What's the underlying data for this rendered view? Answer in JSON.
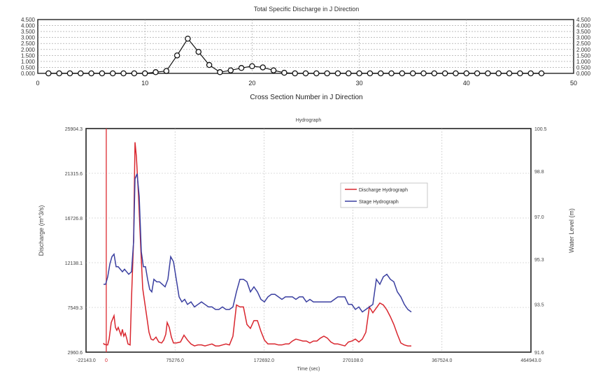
{
  "chart_data": [
    {
      "type": "line",
      "title": "Total Specific Discharge in J Direction",
      "xlabel": "Cross Section Number in J Direction",
      "ylabel": "",
      "xlim": [
        0,
        50
      ],
      "ylim": [
        0,
        4.5
      ],
      "x_ticks": [
        "0",
        "10",
        "20",
        "30",
        "40",
        "50"
      ],
      "y_ticks": [
        "0.000",
        "0.500",
        "1.000",
        "1.500",
        "2.000",
        "2.500",
        "3.000",
        "3.500",
        "4.000",
        "4.500"
      ],
      "y_ticks_right": [
        "0.000",
        "0.500",
        "1.000",
        "1.500",
        "2.000",
        "2.500",
        "3.000",
        "3.500",
        "4.000",
        "4.500"
      ],
      "grid": true,
      "series": [
        {
          "color": "#111111",
          "marker": "open-circle",
          "x": [
            1,
            2,
            3,
            4,
            5,
            6,
            7,
            8,
            9,
            10,
            11,
            12,
            13,
            14,
            15,
            16,
            17,
            18,
            19,
            20,
            21,
            22,
            23,
            24,
            25,
            26,
            27,
            28,
            29,
            30,
            31,
            32,
            33,
            34,
            35,
            36,
            37,
            38,
            39,
            40,
            41,
            42,
            43,
            44,
            45,
            46,
            47
          ],
          "values": [
            0,
            0,
            0,
            0,
            0,
            0,
            0,
            0,
            0,
            0,
            0.1,
            0.2,
            1.5,
            2.9,
            1.8,
            0.7,
            0.1,
            0.25,
            0.45,
            0.6,
            0.5,
            0.25,
            0.05,
            0,
            0,
            0,
            0,
            0,
            0,
            0,
            0,
            0,
            0,
            0,
            0,
            0,
            0,
            0,
            0,
            0,
            0,
            0,
            0,
            0,
            0,
            0,
            0
          ]
        }
      ]
    },
    {
      "type": "line",
      "title": "Hydrograph",
      "xlabel": "Time (sec)",
      "ylabel": "Discharge (m^3/s)",
      "ylabel_right": "Water Level (m)",
      "xlim": [
        -22143.0,
        464943.0
      ],
      "ylim": [
        2960.6,
        25904.3
      ],
      "ylim_right": [
        91.6,
        100.5
      ],
      "x_ticks": [
        "-22143.0",
        "0",
        "75276.0",
        "172692.0",
        "270108.0",
        "367524.0",
        "464943.0"
      ],
      "y_ticks": [
        "2960.6",
        "7549.3",
        "12138.1",
        "16726.8",
        "21315.6",
        "25904.3"
      ],
      "y_ticks_right": [
        "91.6",
        "93.5",
        "95.3",
        "97.0",
        "98.8",
        "100.5"
      ],
      "grid": true,
      "legend_position": "upper-center-right",
      "series": [
        {
          "name": "Discharge Hydrograph",
          "color": "#d9262e",
          "axis": "left",
          "x": [
            0,
            1,
            3,
            4,
            6,
            8,
            11,
            15,
            17,
            19,
            21,
            23,
            25,
            27,
            29,
            31,
            33,
            35,
            38,
            40,
            43,
            45,
            47,
            50,
            53,
            56,
            59,
            62,
            65,
            68,
            71,
            75,
            79,
            83,
            86,
            89,
            91,
            94,
            97,
            100,
            104,
            110,
            115,
            120,
            125,
            130,
            135,
            140,
            145,
            150,
            155,
            160,
            165,
            170,
            175,
            180,
            185,
            190,
            195,
            200,
            205,
            210,
            215,
            220,
            225,
            230,
            235,
            240,
            245,
            250,
            255,
            260,
            265,
            270,
            275,
            280,
            285,
            290,
            295,
            300,
            305,
            310,
            315,
            320,
            325,
            330,
            335,
            340,
            345,
            350,
            355,
            360,
            365,
            370,
            375,
            380,
            385,
            390,
            395,
            400,
            405,
            410,
            415,
            420,
            425,
            430,
            435,
            440
          ],
          "values": [
            3900,
            3750,
            3750,
            3700,
            3700,
            4300,
            6000,
            6700,
            5500,
            5200,
            5500,
            5100,
            4700,
            5300,
            4600,
            4900,
            4400,
            3800,
            3700,
            8500,
            14500,
            24500,
            23000,
            19000,
            14000,
            9500,
            8000,
            6500,
            5000,
            4300,
            4200,
            4500,
            4000,
            3900,
            4200,
            4800,
            6000,
            5500,
            4500,
            3900,
            3900,
            4000,
            4700,
            4200,
            3800,
            3600,
            3700,
            3700,
            3600,
            3700,
            3800,
            3600,
            3600,
            3700,
            3800,
            3700,
            4600,
            7800,
            7600,
            7600,
            5800,
            5400,
            6200,
            6200,
            5100,
            4200,
            3800,
            3800,
            3800,
            3700,
            3700,
            3800,
            3800,
            4100,
            4300,
            4200,
            4100,
            4100,
            3900,
            4100,
            4100,
            4400,
            4600,
            4400,
            4000,
            3800,
            3800,
            3700,
            3600,
            4000,
            4100,
            4300,
            4000,
            4300,
            5000,
            7600,
            7000,
            7500,
            8000,
            7800,
            7300,
            6600,
            5800,
            4800,
            3900,
            3700,
            3600,
            3600
          ],
          "x_unit": "px-template"
        },
        {
          "name": "Stage Hydrograph",
          "color": "#3a3fa0",
          "axis": "right",
          "x": [
            0,
            3,
            6,
            9,
            12,
            15,
            18,
            21,
            24,
            27,
            30,
            33,
            36,
            40,
            43,
            45,
            48,
            51,
            54,
            57,
            60,
            63,
            66,
            69,
            72,
            76,
            80,
            84,
            88,
            92,
            96,
            100,
            104,
            108,
            112,
            116,
            120,
            125,
            130,
            135,
            140,
            145,
            150,
            155,
            160,
            165,
            170,
            175,
            180,
            185,
            190,
            195,
            200,
            205,
            210,
            215,
            220,
            225,
            230,
            235,
            240,
            245,
            250,
            255,
            260,
            265,
            270,
            275,
            280,
            285,
            290,
            295,
            300,
            305,
            310,
            315,
            320,
            325,
            330,
            335,
            340,
            345,
            350,
            355,
            360,
            365,
            370,
            375,
            380,
            385,
            390,
            395,
            400,
            405,
            410,
            415,
            420,
            425,
            430,
            435,
            440
          ],
          "values": [
            94.3,
            94.3,
            94.6,
            95.1,
            95.4,
            95.5,
            95.0,
            95.0,
            94.9,
            94.8,
            94.9,
            94.8,
            94.7,
            94.8,
            96.0,
            98.5,
            98.7,
            97.8,
            95.6,
            95.0,
            95.0,
            94.5,
            94.1,
            94.0,
            94.5,
            94.4,
            94.4,
            94.3,
            94.2,
            94.5,
            95.4,
            95.2,
            94.5,
            93.8,
            93.6,
            93.7,
            93.5,
            93.6,
            93.4,
            93.5,
            93.6,
            93.5,
            93.4,
            93.4,
            93.3,
            93.3,
            93.4,
            93.3,
            93.3,
            93.4,
            94.0,
            94.5,
            94.5,
            94.4,
            94.0,
            94.2,
            94.0,
            93.7,
            93.6,
            93.8,
            93.9,
            93.9,
            93.8,
            93.7,
            93.8,
            93.8,
            93.8,
            93.7,
            93.8,
            93.8,
            93.6,
            93.7,
            93.6,
            93.6,
            93.6,
            93.6,
            93.6,
            93.6,
            93.7,
            93.8,
            93.8,
            93.8,
            93.5,
            93.5,
            93.3,
            93.4,
            93.2,
            93.3,
            93.4,
            93.5,
            94.5,
            94.3,
            94.6,
            94.7,
            94.5,
            94.4,
            94.0,
            93.8,
            93.5,
            93.3,
            93.2
          ],
          "x_unit": "px-template"
        }
      ],
      "marker_line": {
        "color": "#e03a40"
      }
    }
  ]
}
